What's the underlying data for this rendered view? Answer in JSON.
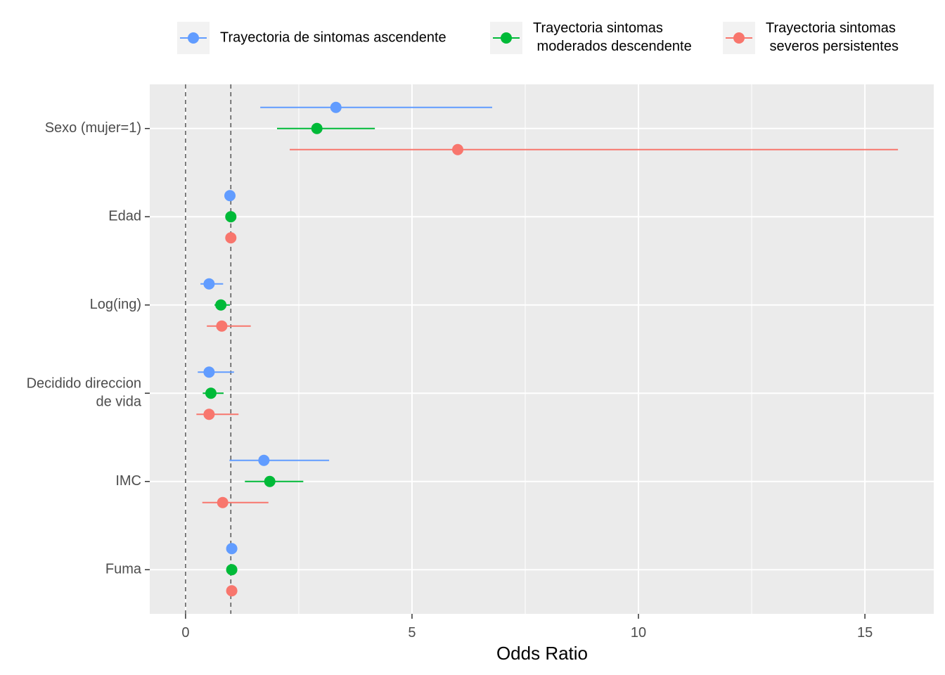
{
  "chart_data": {
    "type": "forest",
    "x_label": "Odds Ratio",
    "categories": [
      "Sexo (mujer=1)",
      "Edad",
      "Log(ing)",
      "Decidido direccion\nde vida",
      "IMC",
      "Fuma"
    ],
    "series": [
      {
        "name": "Trayectoria de sintomas ascendente",
        "color": "#619CFF",
        "values": [
          3.32,
          0.98,
          0.52,
          0.52,
          1.73,
          1.02
        ],
        "lower": [
          1.65,
          0.97,
          0.33,
          0.27,
          0.97,
          1.0
        ],
        "upper": [
          6.77,
          0.99,
          0.83,
          1.07,
          3.17,
          1.04
        ]
      },
      {
        "name": "Trayectoria sintomas\n moderados descendente",
        "color": "#00BA38",
        "values": [
          2.9,
          1.0,
          0.78,
          0.56,
          1.86,
          1.02
        ],
        "lower": [
          2.02,
          0.99,
          0.64,
          0.38,
          1.31,
          1.0
        ],
        "upper": [
          4.18,
          1.01,
          0.98,
          0.84,
          2.6,
          1.04
        ]
      },
      {
        "name": "Trayectoria sintomas\n severos persistentes",
        "color": "#F8766D",
        "values": [
          6.01,
          1.0,
          0.8,
          0.52,
          0.82,
          1.02
        ],
        "lower": [
          2.3,
          0.99,
          0.47,
          0.24,
          0.37,
          1.0
        ],
        "upper": [
          15.73,
          1.01,
          1.44,
          1.17,
          1.83,
          1.04
        ]
      }
    ],
    "xlim": [
      -0.79,
      16.52
    ],
    "xticks": [
      0,
      5,
      10,
      15
    ],
    "xminor": [
      2.5,
      7.5,
      12.5
    ],
    "ref_lines": [
      0,
      1
    ],
    "grid": true,
    "legend": "top"
  }
}
